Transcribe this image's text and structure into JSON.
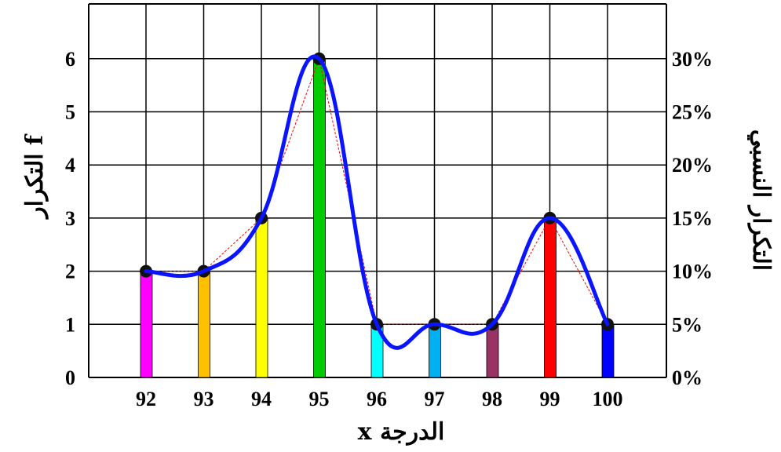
{
  "chart_data": {
    "type": "bar",
    "categories": [
      "92",
      "93",
      "94",
      "95",
      "96",
      "97",
      "98",
      "99",
      "100"
    ],
    "values": [
      2,
      2,
      3,
      6,
      1,
      1,
      1,
      3,
      1
    ],
    "bar_colors": [
      "#ff00ff",
      "#ffc000",
      "#ffff00",
      "#00cc00",
      "#00ffff",
      "#00b0f0",
      "#993366",
      "#ff0000",
      "#0000ff"
    ],
    "xlabel": "الدرجة x",
    "ylabel": "التكرار f",
    "ylabel_right": "التكرار النسبي",
    "ylim": [
      0,
      7
    ],
    "yticks": [
      "0",
      "1",
      "2",
      "3",
      "4",
      "5",
      "6"
    ],
    "yticks_right": [
      "0%",
      "5%",
      "10%",
      "15%",
      "20%",
      "25%",
      "30%"
    ],
    "grid": true,
    "overlays": [
      {
        "type": "polygon-line",
        "style": "dashed",
        "color": "#ff0000",
        "x": [
          "92",
          "93",
          "94",
          "95",
          "96",
          "97",
          "98",
          "99",
          "100"
        ],
        "y": [
          2,
          2,
          3,
          6,
          1,
          1,
          1,
          3,
          1
        ]
      },
      {
        "type": "smooth-curve",
        "color": "#0000ff",
        "x": [
          "92",
          "93",
          "94",
          "95",
          "96",
          "97",
          "98",
          "99",
          "100"
        ],
        "y": [
          2,
          2,
          3,
          6,
          1,
          1,
          1,
          3,
          1
        ]
      }
    ]
  }
}
